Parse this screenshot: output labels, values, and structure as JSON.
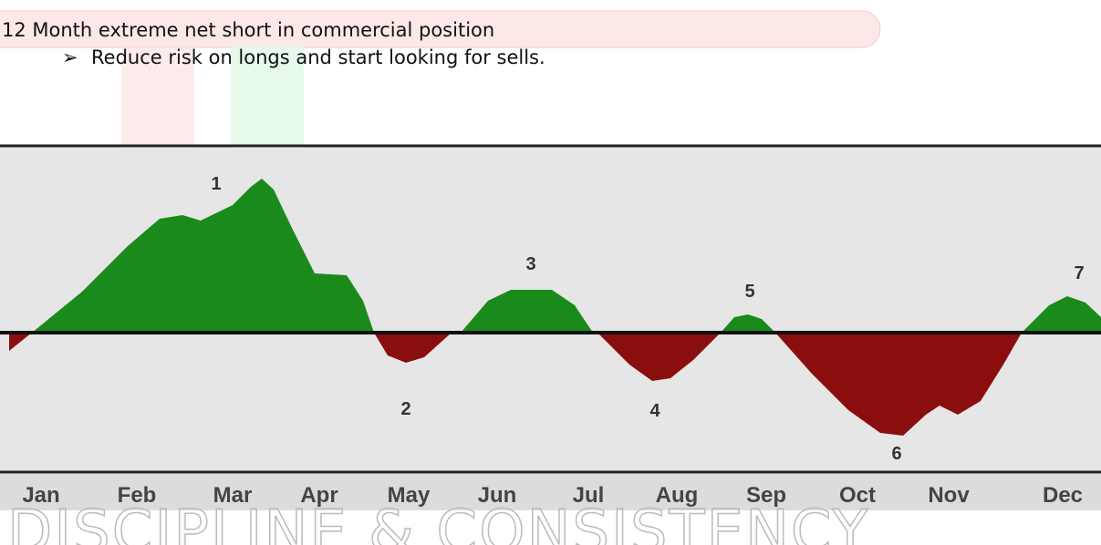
{
  "heading": "12 Month extreme net short in commercial position",
  "bullets": [
    "Reduce risk on longs and start looking for sells."
  ],
  "chart": {
    "months": [
      "Jan",
      "Feb",
      "Mar",
      "Apr",
      "May",
      "Jun",
      "Jul",
      "Aug",
      "Sep",
      "Oct",
      "Nov",
      "Dec"
    ],
    "labels": [
      "1",
      "2",
      "3",
      "4",
      "5",
      "6",
      "7"
    ]
  },
  "watermark": "DISCIPLINE & CONSISTENCY"
}
